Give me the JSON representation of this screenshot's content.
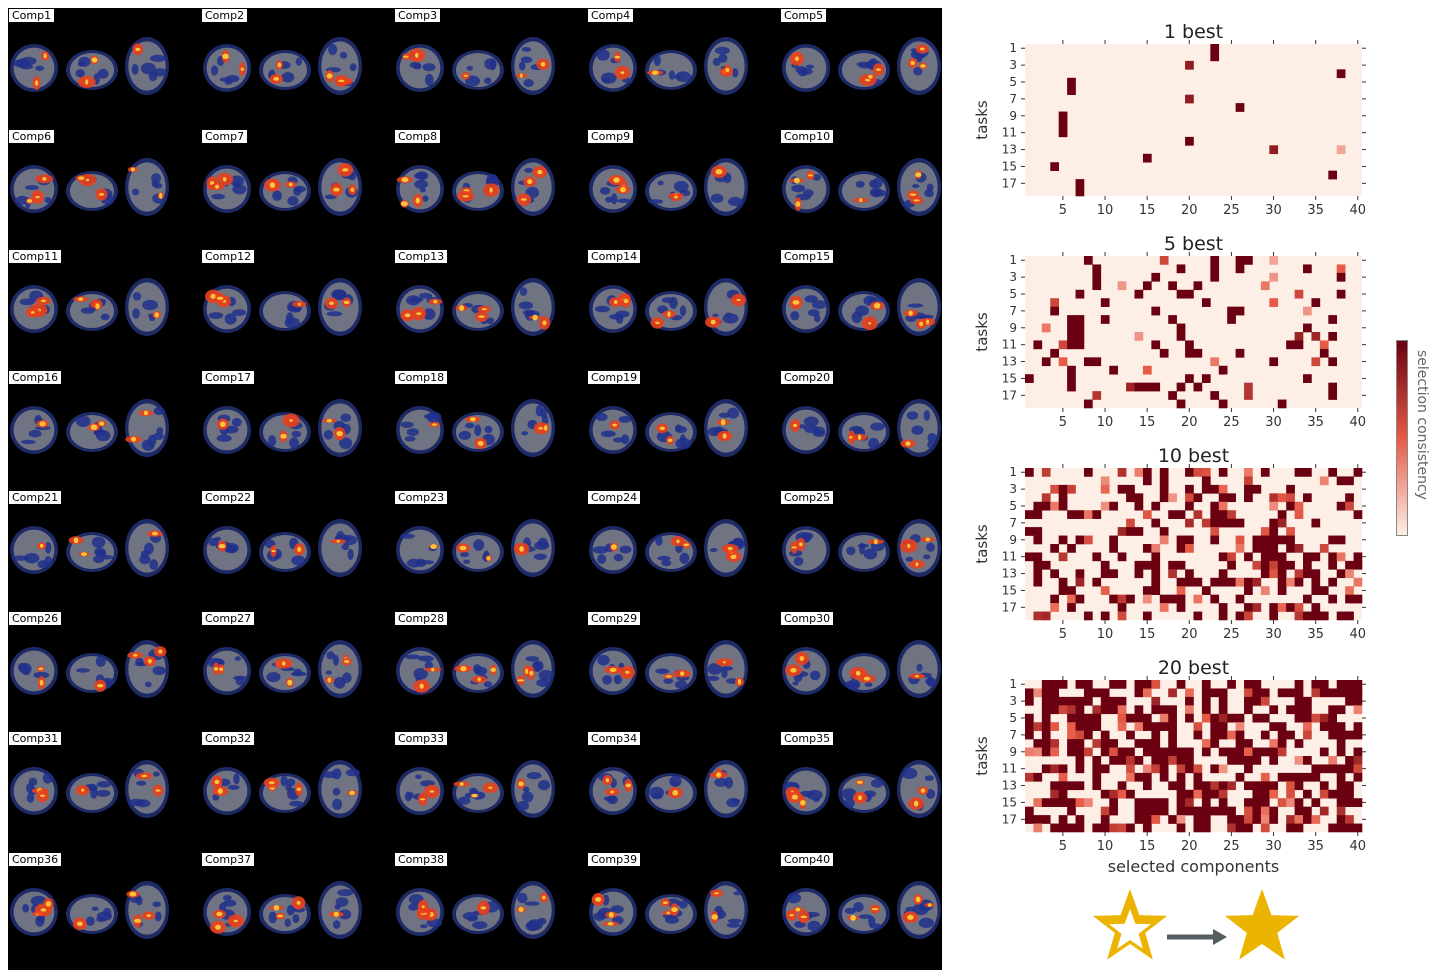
{
  "brain_components": {
    "labels": [
      "Comp1",
      "Comp2",
      "Comp3",
      "Comp4",
      "Comp5",
      "Comp6",
      "Comp7",
      "Comp8",
      "Comp9",
      "Comp10",
      "Comp11",
      "Comp12",
      "Comp13",
      "Comp14",
      "Comp15",
      "Comp16",
      "Comp17",
      "Comp18",
      "Comp19",
      "Comp20",
      "Comp21",
      "Comp22",
      "Comp23",
      "Comp24",
      "Comp25",
      "Comp26",
      "Comp27",
      "Comp28",
      "Comp29",
      "Comp30",
      "Comp31",
      "Comp32",
      "Comp33",
      "Comp34",
      "Comp35",
      "Comp36",
      "Comp37",
      "Comp38",
      "Comp39",
      "Comp40"
    ]
  },
  "colors": {
    "panel_background": "#000000",
    "brain_gray": "#8c8c8c",
    "positive_activation": "#e8401c",
    "negative_activation": "#2a44c8",
    "heatmap_low": "#fdeee6",
    "heatmap_high": "#6b0010",
    "star_gold": "#eab400",
    "arrow_gray": "#555d61"
  },
  "icons": {
    "from": "star-outline-icon",
    "arrow": "arrow-right-icon",
    "to": "star-filled-icon"
  },
  "colorbar_label": "selection consistency",
  "chart_data": [
    {
      "type": "heatmap",
      "title": "1 best",
      "ylabel": "tasks",
      "xlabel": "",
      "x_ticks": [
        "5",
        "10",
        "15",
        "20",
        "25",
        "30",
        "35",
        "40"
      ],
      "y_ticks": [
        "1",
        "3",
        "5",
        "7",
        "9",
        "11",
        "13",
        "15",
        "17"
      ],
      "xlim": [
        1,
        40
      ],
      "ylim": [
        1,
        18
      ],
      "cells": [
        {
          "task": 1,
          "comp": 23,
          "v": 1
        },
        {
          "task": 2,
          "comp": 23,
          "v": 1
        },
        {
          "task": 3,
          "comp": 20,
          "v": 0.85
        },
        {
          "task": 4,
          "comp": 38,
          "v": 1
        },
        {
          "task": 5,
          "comp": 6,
          "v": 1
        },
        {
          "task": 6,
          "comp": 6,
          "v": 1
        },
        {
          "task": 7,
          "comp": 20,
          "v": 0.85
        },
        {
          "task": 8,
          "comp": 26,
          "v": 1
        },
        {
          "task": 9,
          "comp": 5,
          "v": 1
        },
        {
          "task": 10,
          "comp": 5,
          "v": 1
        },
        {
          "task": 11,
          "comp": 5,
          "v": 1
        },
        {
          "task": 12,
          "comp": 20,
          "v": 1
        },
        {
          "task": 13,
          "comp": 30,
          "v": 0.85
        },
        {
          "task": 13,
          "comp": 38,
          "v": 0.25
        },
        {
          "task": 14,
          "comp": 15,
          "v": 1
        },
        {
          "task": 15,
          "comp": 4,
          "v": 1
        },
        {
          "task": 16,
          "comp": 37,
          "v": 1
        },
        {
          "task": 17,
          "comp": 7,
          "v": 1
        },
        {
          "task": 18,
          "comp": 7,
          "v": 1
        }
      ]
    },
    {
      "type": "heatmap",
      "title": "5 best",
      "ylabel": "tasks",
      "xlabel": "",
      "x_ticks": [
        "5",
        "10",
        "15",
        "20",
        "25",
        "30",
        "35",
        "40"
      ],
      "y_ticks": [
        "1",
        "3",
        "5",
        "7",
        "9",
        "11",
        "13",
        "15",
        "17"
      ],
      "xlim": [
        1,
        40
      ],
      "ylim": [
        1,
        18
      ],
      "cells": [
        {
          "task": 1,
          "comp": 8,
          "v": 1
        },
        {
          "task": 1,
          "comp": 17,
          "v": 0.6
        },
        {
          "task": 1,
          "comp": 23,
          "v": 1
        },
        {
          "task": 1,
          "comp": 26,
          "v": 1
        },
        {
          "task": 1,
          "comp": 27,
          "v": 1
        },
        {
          "task": 1,
          "comp": 30,
          "v": 0.25
        },
        {
          "task": 2,
          "comp": 9,
          "v": 1
        },
        {
          "task": 2,
          "comp": 19,
          "v": 1
        },
        {
          "task": 2,
          "comp": 23,
          "v": 1
        },
        {
          "task": 2,
          "comp": 26,
          "v": 1
        },
        {
          "task": 2,
          "comp": 34,
          "v": 1
        },
        {
          "task": 2,
          "comp": 38,
          "v": 0.5
        },
        {
          "task": 3,
          "comp": 9,
          "v": 1
        },
        {
          "task": 3,
          "comp": 16,
          "v": 1
        },
        {
          "task": 3,
          "comp": 23,
          "v": 1
        },
        {
          "task": 3,
          "comp": 30,
          "v": 0.3
        },
        {
          "task": 3,
          "comp": 38,
          "v": 1
        },
        {
          "task": 4,
          "comp": 9,
          "v": 1
        },
        {
          "task": 4,
          "comp": 12,
          "v": 0.3
        },
        {
          "task": 4,
          "comp": 15,
          "v": 1
        },
        {
          "task": 4,
          "comp": 18,
          "v": 1
        },
        {
          "task": 4,
          "comp": 21,
          "v": 1
        },
        {
          "task": 4,
          "comp": 29,
          "v": 0.4
        },
        {
          "task": 5,
          "comp": 7,
          "v": 1
        },
        {
          "task": 5,
          "comp": 14,
          "v": 1
        },
        {
          "task": 5,
          "comp": 19,
          "v": 1
        },
        {
          "task": 5,
          "comp": 20,
          "v": 1
        },
        {
          "task": 5,
          "comp": 33,
          "v": 0.6
        },
        {
          "task": 5,
          "comp": 38,
          "v": 1
        },
        {
          "task": 6,
          "comp": 4,
          "v": 0.6
        },
        {
          "task": 6,
          "comp": 10,
          "v": 1
        },
        {
          "task": 6,
          "comp": 22,
          "v": 1
        },
        {
          "task": 6,
          "comp": 30,
          "v": 0.5
        },
        {
          "task": 6,
          "comp": 35,
          "v": 1
        },
        {
          "task": 7,
          "comp": 4,
          "v": 1
        },
        {
          "task": 7,
          "comp": 16,
          "v": 1
        },
        {
          "task": 7,
          "comp": 25,
          "v": 1
        },
        {
          "task": 7,
          "comp": 26,
          "v": 1
        },
        {
          "task": 7,
          "comp": 34,
          "v": 0.3
        },
        {
          "task": 8,
          "comp": 6,
          "v": 1
        },
        {
          "task": 8,
          "comp": 7,
          "v": 1
        },
        {
          "task": 8,
          "comp": 10,
          "v": 1
        },
        {
          "task": 8,
          "comp": 18,
          "v": 1
        },
        {
          "task": 8,
          "comp": 25,
          "v": 1
        },
        {
          "task": 8,
          "comp": 37,
          "v": 1
        },
        {
          "task": 9,
          "comp": 3,
          "v": 0.4
        },
        {
          "task": 9,
          "comp": 6,
          "v": 1
        },
        {
          "task": 9,
          "comp": 7,
          "v": 1
        },
        {
          "task": 9,
          "comp": 19,
          "v": 1
        },
        {
          "task": 9,
          "comp": 34,
          "v": 1
        },
        {
          "task": 10,
          "comp": 6,
          "v": 1
        },
        {
          "task": 10,
          "comp": 7,
          "v": 1
        },
        {
          "task": 10,
          "comp": 14,
          "v": 0.3
        },
        {
          "task": 10,
          "comp": 19,
          "v": 1
        },
        {
          "task": 10,
          "comp": 33,
          "v": 0.8
        },
        {
          "task": 10,
          "comp": 35,
          "v": 0.8
        },
        {
          "task": 10,
          "comp": 37,
          "v": 1
        },
        {
          "task": 11,
          "comp": 2,
          "v": 1
        },
        {
          "task": 11,
          "comp": 5,
          "v": 0.6
        },
        {
          "task": 11,
          "comp": 6,
          "v": 1
        },
        {
          "task": 11,
          "comp": 7,
          "v": 1
        },
        {
          "task": 11,
          "comp": 16,
          "v": 1
        },
        {
          "task": 11,
          "comp": 20,
          "v": 1
        },
        {
          "task": 11,
          "comp": 32,
          "v": 1
        },
        {
          "task": 11,
          "comp": 33,
          "v": 1
        },
        {
          "task": 11,
          "comp": 36,
          "v": 0.5
        },
        {
          "task": 12,
          "comp": 4,
          "v": 1
        },
        {
          "task": 12,
          "comp": 17,
          "v": 1
        },
        {
          "task": 12,
          "comp": 20,
          "v": 1
        },
        {
          "task": 12,
          "comp": 21,
          "v": 1
        },
        {
          "task": 12,
          "comp": 26,
          "v": 1
        },
        {
          "task": 12,
          "comp": 36,
          "v": 1
        },
        {
          "task": 13,
          "comp": 3,
          "v": 1
        },
        {
          "task": 13,
          "comp": 5,
          "v": 0.5
        },
        {
          "task": 13,
          "comp": 8,
          "v": 1
        },
        {
          "task": 13,
          "comp": 9,
          "v": 1
        },
        {
          "task": 13,
          "comp": 23,
          "v": 0.4
        },
        {
          "task": 13,
          "comp": 30,
          "v": 1
        },
        {
          "task": 13,
          "comp": 35,
          "v": 0.6
        },
        {
          "task": 13,
          "comp": 37,
          "v": 1
        },
        {
          "task": 14,
          "comp": 6,
          "v": 1
        },
        {
          "task": 14,
          "comp": 11,
          "v": 1
        },
        {
          "task": 14,
          "comp": 15,
          "v": 0.5
        },
        {
          "task": 14,
          "comp": 24,
          "v": 1
        },
        {
          "task": 15,
          "comp": 1,
          "v": 1
        },
        {
          "task": 15,
          "comp": 6,
          "v": 1
        },
        {
          "task": 15,
          "comp": 20,
          "v": 1
        },
        {
          "task": 15,
          "comp": 22,
          "v": 1
        },
        {
          "task": 15,
          "comp": 34,
          "v": 1
        },
        {
          "task": 16,
          "comp": 6,
          "v": 1
        },
        {
          "task": 16,
          "comp": 13,
          "v": 0.8
        },
        {
          "task": 16,
          "comp": 14,
          "v": 1
        },
        {
          "task": 16,
          "comp": 15,
          "v": 1
        },
        {
          "task": 16,
          "comp": 16,
          "v": 1
        },
        {
          "task": 16,
          "comp": 19,
          "v": 1
        },
        {
          "task": 16,
          "comp": 21,
          "v": 1
        },
        {
          "task": 16,
          "comp": 27,
          "v": 0.7
        },
        {
          "task": 16,
          "comp": 37,
          "v": 1
        },
        {
          "task": 17,
          "comp": 9,
          "v": 0.7
        },
        {
          "task": 17,
          "comp": 18,
          "v": 1
        },
        {
          "task": 17,
          "comp": 23,
          "v": 1
        },
        {
          "task": 17,
          "comp": 27,
          "v": 0.7
        },
        {
          "task": 17,
          "comp": 37,
          "v": 1
        },
        {
          "task": 18,
          "comp": 8,
          "v": 1
        },
        {
          "task": 18,
          "comp": 19,
          "v": 1
        },
        {
          "task": 18,
          "comp": 24,
          "v": 1
        },
        {
          "task": 18,
          "comp": 31,
          "v": 1
        }
      ]
    },
    {
      "type": "heatmap",
      "title": "10 best",
      "ylabel": "tasks",
      "xlabel": "",
      "x_ticks": [
        "5",
        "10",
        "15",
        "20",
        "25",
        "30",
        "35",
        "40"
      ],
      "y_ticks": [
        "1",
        "3",
        "5",
        "7",
        "9",
        "11",
        "13",
        "15",
        "17"
      ],
      "xlim": [
        1,
        40
      ],
      "ylim": [
        1,
        18
      ],
      "density": 0.34
    },
    {
      "type": "heatmap",
      "title": "20 best",
      "ylabel": "tasks",
      "xlabel": "selected components",
      "x_ticks": [
        "5",
        "10",
        "15",
        "20",
        "25",
        "30",
        "35",
        "40"
      ],
      "y_ticks": [
        "1",
        "3",
        "5",
        "7",
        "9",
        "11",
        "13",
        "15",
        "17"
      ],
      "xlim": [
        1,
        40
      ],
      "ylim": [
        1,
        18
      ],
      "density": 0.58
    }
  ]
}
